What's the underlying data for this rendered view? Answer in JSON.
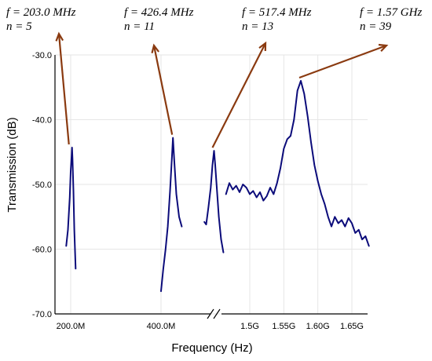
{
  "chart_data": {
    "type": "line",
    "title": "",
    "xlabel": "Frequency (Hz)",
    "ylabel": "Transmission (dB)",
    "ylim": [
      -70.0,
      -30.0
    ],
    "y_ticks": [
      "-30.0",
      "-40.0",
      "-50.0",
      "-60.0",
      "-70.0"
    ],
    "x_ticks_left": [
      "200.0M",
      "400.0M"
    ],
    "x_ticks_right": [
      "1.5G",
      "1.55G",
      "1.60G",
      "1.65G"
    ],
    "x_axis_break": true,
    "grid": true,
    "colors": {
      "trace": "#0b0b7a",
      "arrow": "#8a3a10"
    },
    "annotations": [
      {
        "freq": "f = 203.0 MHz",
        "mode": "n = 5"
      },
      {
        "freq": "f = 426.4 MHz",
        "mode": "n = 11"
      },
      {
        "freq": "f = 517.4 MHz",
        "mode": "n = 13"
      },
      {
        "freq": "f = 1.57 GHz",
        "mode": "n = 39"
      }
    ],
    "series": [
      {
        "peak": "f = 203.0 MHz",
        "x_MHz": [
          190,
          194,
          198,
          200,
          202,
          203,
          204,
          206,
          208,
          211
        ],
        "y_dB": [
          -59.5,
          -57,
          -52,
          -48,
          -45.5,
          -44.3,
          -46,
          -51,
          -57,
          -63
        ]
      },
      {
        "peak": "f = 426.4 MHz",
        "x_MHz": [
          400,
          405,
          410,
          415,
          420,
          424,
          426.4,
          429,
          434,
          440,
          446
        ],
        "y_dB": [
          -66.5,
          -63,
          -60,
          -56.5,
          -51,
          -46,
          -42.8,
          -46,
          -51.5,
          -55,
          -56.5
        ]
      },
      {
        "peak": "f = 517.4 MHz",
        "x_MHz": [
          496,
          500,
          505,
          510,
          514,
          517.4,
          520,
          524,
          528,
          533,
          538
        ],
        "y_dB": [
          -55.8,
          -56.2,
          -53.5,
          -50.5,
          -47,
          -44.8,
          -47,
          -51,
          -55,
          -58.5,
          -60.5
        ]
      },
      {
        "peak": "f = 1.57 GHz",
        "x_GHz": [
          1.465,
          1.47,
          1.475,
          1.48,
          1.485,
          1.49,
          1.495,
          1.5,
          1.505,
          1.51,
          1.515,
          1.52,
          1.525,
          1.53,
          1.535,
          1.54,
          1.545,
          1.55,
          1.555,
          1.56,
          1.565,
          1.57,
          1.575,
          1.58,
          1.585,
          1.59,
          1.595,
          1.6,
          1.605,
          1.61,
          1.615,
          1.62,
          1.625,
          1.63,
          1.635,
          1.64,
          1.645,
          1.65,
          1.655,
          1.66,
          1.665,
          1.67,
          1.675
        ],
        "y_dB": [
          -51.5,
          -49.8,
          -50.8,
          -50.2,
          -51.2,
          -50.0,
          -50.5,
          -51.5,
          -51.0,
          -52.0,
          -51.2,
          -52.5,
          -51.8,
          -50.5,
          -51.5,
          -49.8,
          -47.5,
          -44.5,
          -43.0,
          -42.5,
          -40.0,
          -35.5,
          -34.0,
          -36.0,
          -39.5,
          -43.5,
          -47.0,
          -49.5,
          -51.5,
          -53.0,
          -55.0,
          -56.5,
          -55.0,
          -56.0,
          -55.5,
          -56.5,
          -55.2,
          -56.0,
          -57.5,
          -57.0,
          -58.5,
          -58.0,
          -59.5
        ]
      }
    ]
  }
}
